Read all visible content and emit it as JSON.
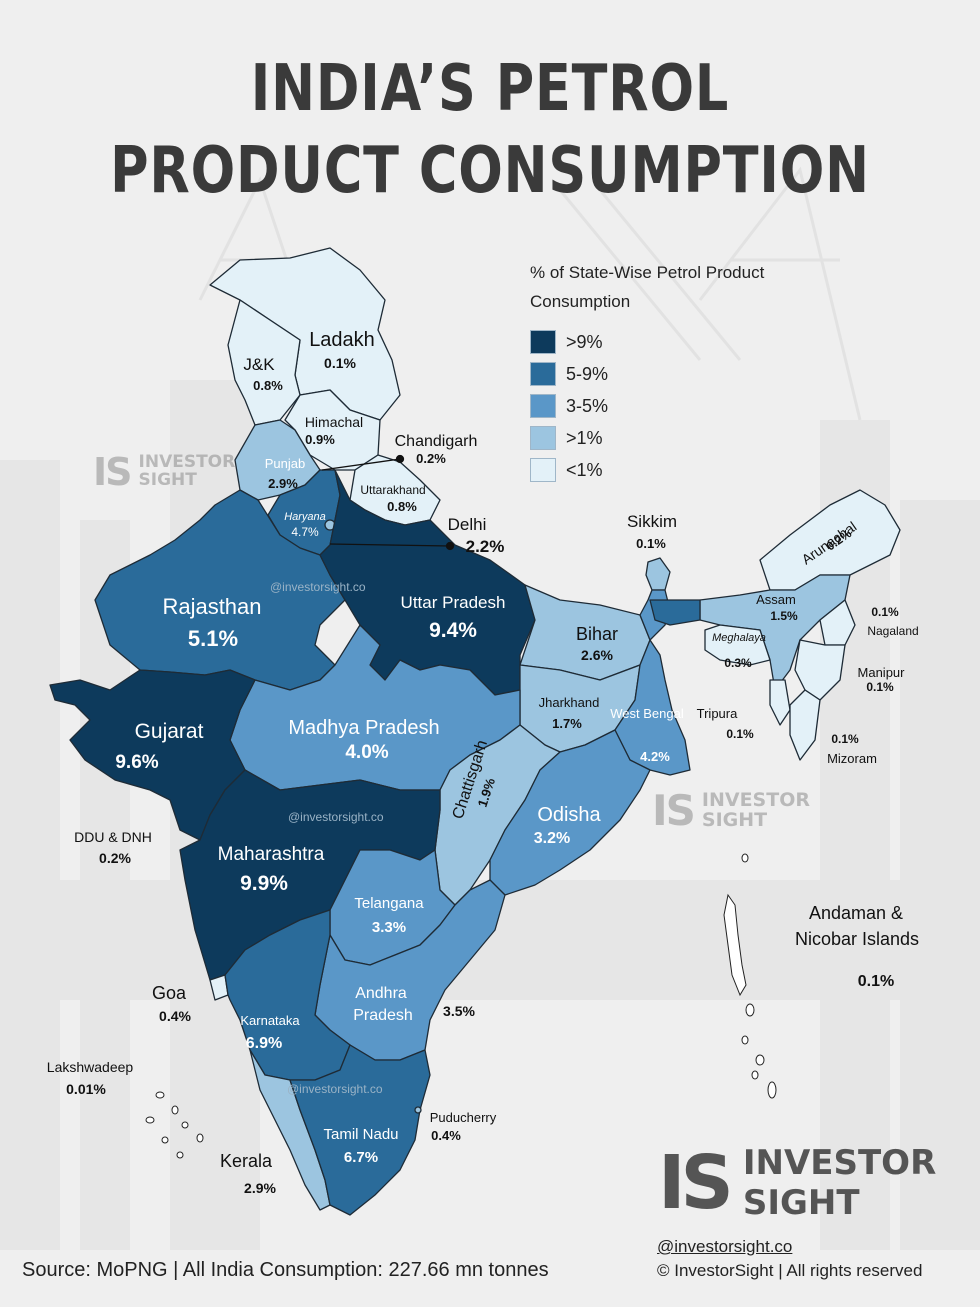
{
  "title_lines": [
    "INDIA’S PETROL",
    "PRODUCT CONSUMPTION"
  ],
  "legend": {
    "title": "% of State-Wise Petrol Product Consumption",
    "items": [
      {
        "label": ">9%",
        "color": "#0d3a5c"
      },
      {
        "label": "5-9%",
        "color": "#2a6b9a"
      },
      {
        "label": "3-5%",
        "color": "#5a97c8"
      },
      {
        "label": ">1%",
        "color": "#9cc5e0"
      },
      {
        "label": "<1%",
        "color": "#e3f1f8"
      }
    ]
  },
  "regions": [
    {
      "name": "Ladakh",
      "value": "0.1%"
    },
    {
      "name": "J&K",
      "value": "0.8%"
    },
    {
      "name": "Himachal",
      "value": "0.9%"
    },
    {
      "name": "Chandigarh",
      "value": "0.2%"
    },
    {
      "name": "Punjab",
      "value": "2.9%"
    },
    {
      "name": "Uttarakhand",
      "value": "0.8%"
    },
    {
      "name": "Haryana",
      "value": "4.7%"
    },
    {
      "name": "Delhi",
      "value": "2.2%"
    },
    {
      "name": "Rajasthan",
      "value": "5.1%"
    },
    {
      "name": "Uttar Pradesh",
      "value": "9.4%"
    },
    {
      "name": "Bihar",
      "value": "2.6%"
    },
    {
      "name": "Sikkim",
      "value": "0.1%"
    },
    {
      "name": "Arunachal",
      "value": "0.2%"
    },
    {
      "name": "Assam",
      "value": "1.5%"
    },
    {
      "name": "Meghalaya",
      "value": "0.3%"
    },
    {
      "name": "Nagaland",
      "value": "0.1%"
    },
    {
      "name": "Manipur",
      "value": "0.1%"
    },
    {
      "name": "Tripura",
      "value": "0.1%"
    },
    {
      "name": "Mizoram",
      "value": "0.1%"
    },
    {
      "name": "Gujarat",
      "value": "9.6%"
    },
    {
      "name": "Madhya Pradesh",
      "value": "4.0%"
    },
    {
      "name": "Jharkhand",
      "value": "1.7%"
    },
    {
      "name": "West Bengal",
      "value": "4.2%"
    },
    {
      "name": "Chattisgarh",
      "value": "1.9%"
    },
    {
      "name": "Odisha",
      "value": "3.2%"
    },
    {
      "name": "DDU & DNH",
      "value": "0.2%"
    },
    {
      "name": "Maharashtra",
      "value": "9.9%"
    },
    {
      "name": "Telangana",
      "value": "3.3%"
    },
    {
      "name": "Andhra Pradesh",
      "value": "3.5%"
    },
    {
      "name": "Goa",
      "value": "0.4%"
    },
    {
      "name": "Karnataka",
      "value": "6.9%"
    },
    {
      "name": "Lakshwadeep",
      "value": "0.01%"
    },
    {
      "name": "Puducherry",
      "value": "0.4%"
    },
    {
      "name": "Tamil Nadu",
      "value": "6.7%"
    },
    {
      "name": "Kerala",
      "value": "2.9%"
    },
    {
      "name": "Andaman & Nicobar Islands",
      "value": "0.1%"
    }
  ],
  "watermark_url": "@investorsight.co",
  "brand": {
    "logo": "IS",
    "line1": "INVESTOR",
    "line2": "SIGHT"
  },
  "handle": "@investorsight.co",
  "rights": "© InvestorSight |  All rights reserved",
  "source": "Source: MoPNG | All India Consumption: 227.66 mn tonnes"
}
